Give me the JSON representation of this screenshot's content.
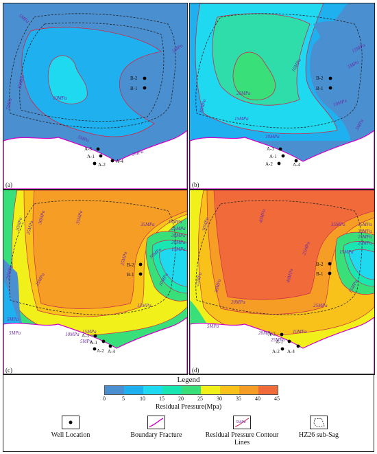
{
  "panels": [
    {
      "id": "a",
      "label": "(a)"
    },
    {
      "id": "b",
      "label": "(b)"
    },
    {
      "id": "c",
      "label": "(c)"
    },
    {
      "id": "d",
      "label": "(d)"
    }
  ],
  "contour_labels": {
    "a": [
      "5MPa",
      "5MPa",
      "5MPa",
      "10MPa",
      "10MPa",
      "5MPa",
      "5MPa"
    ],
    "b": [
      "10MPa",
      "10MPa",
      "20MPa",
      "15MPa",
      "10MPa",
      "5MPa",
      "5MPa",
      "10MPa",
      "15MPa"
    ],
    "c": [
      "20MPa",
      "25MPa",
      "30MPa",
      "35MPa",
      "35MPa",
      "25MPa",
      "30MPa",
      "35MPa",
      "20MPa",
      "25MPa",
      "25MPa",
      "20MPa",
      "15MPa",
      "10MPa",
      "15MPa",
      "10MPa",
      "5MPa",
      "5MPa",
      "10MPa",
      "15MPa",
      "5MPa"
    ],
    "d": [
      "35MPa",
      "40MPa",
      "40MPa",
      "30MPa",
      "25MPa",
      "35MPa",
      "30MPa",
      "25MPa",
      "20MPa",
      "15MPa",
      "20MPa",
      "25MPa",
      "30MPa",
      "25MPa",
      "10MPa",
      "5MPa",
      "15MPa",
      "20MPa",
      "25MPa"
    ]
  },
  "wells": {
    "b_group": [
      "B-2",
      "B-1"
    ],
    "a_group": [
      "A-3",
      "A-1",
      "A-2",
      "A-4"
    ]
  },
  "legend": {
    "title": "Legend",
    "scale_title": "Residual Pressure(Mpa)",
    "ticks": [
      "0",
      "5",
      "10",
      "15",
      "20",
      "25",
      "30",
      "35",
      "40",
      "45"
    ],
    "colors": [
      "#4a8fd0",
      "#1fb0f0",
      "#1ed9f0",
      "#19e6b0",
      "#39e07a",
      "#f2f01a",
      "#f8c21a",
      "#f59d24",
      "#f06a3a"
    ],
    "items": [
      {
        "label": "Well Location",
        "icon": "well-location-icon"
      },
      {
        "label": "Boundary Fracture",
        "icon": "boundary-fracture-icon"
      },
      {
        "label": "Residual Pressure Contour Lines",
        "icon": "contour-line-icon",
        "icon_text": "5MPa"
      },
      {
        "label": "HZ26 sub-Sag",
        "icon": "sub-sag-outline-icon"
      }
    ]
  }
}
